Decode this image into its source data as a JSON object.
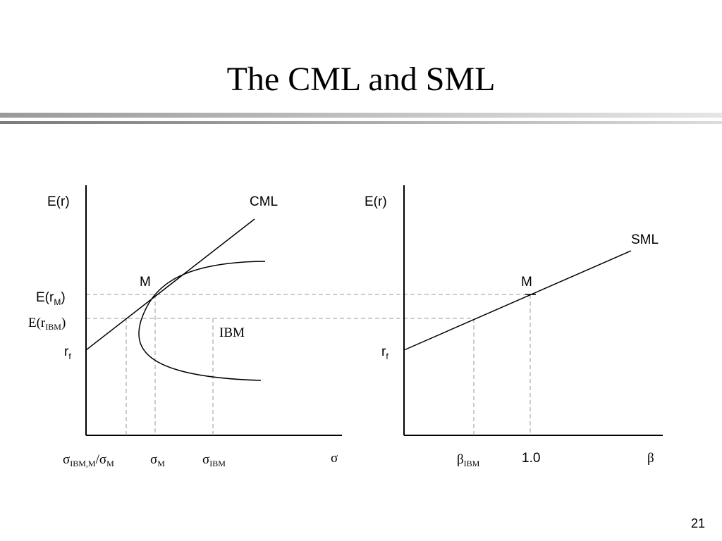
{
  "title": "The CML and SML",
  "page_number": "21",
  "left_panel": {
    "y_axis_label": "E(r)",
    "line_label": "CML",
    "point_label": "M",
    "frontier_label": "IBM",
    "y_ticks": {
      "erm_main": "E(r",
      "erm_sub": "M",
      "erm_close": ")",
      "eribm_main": "E(r",
      "eribm_sub": "IBM",
      "eribm_close": ")",
      "rf_main": "r",
      "rf_sub": "f"
    },
    "x_ticks": {
      "cov_sigma1": "σ",
      "cov_sub1": "IBM,M",
      "cov_slash": "/",
      "cov_sigma2": "σ",
      "cov_sub2": "M",
      "sm_sigma": "σ",
      "sm_sub": "M",
      "sibm_sigma": "σ",
      "sibm_sub": "IBM",
      "axis_symbol": "σ"
    }
  },
  "right_panel": {
    "y_axis_label": "E(r)",
    "line_label": "SML",
    "point_label": "M",
    "y_ticks": {
      "rf_main": "r",
      "rf_sub": "f"
    },
    "x_ticks": {
      "beta_ibm_symbol": "β",
      "beta_ibm_sub": "IBM",
      "one": "1.0",
      "axis_symbol": "β"
    }
  }
}
